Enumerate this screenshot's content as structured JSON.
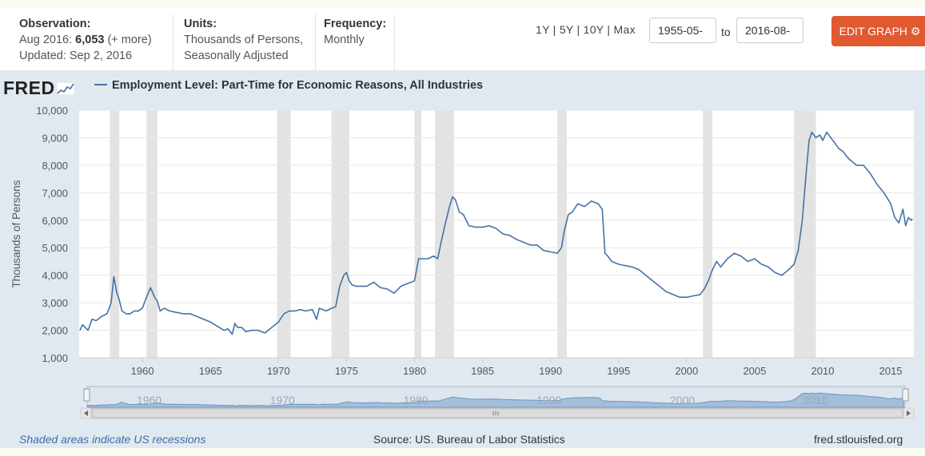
{
  "observation": {
    "header": "Observation:",
    "line1_prefix": "Aug 2016: ",
    "line1_value": "6,053",
    "line1_suffix": " (+ more)",
    "updated": "Updated: Sep 2, 2016"
  },
  "units": {
    "header": "Units:",
    "line1": "Thousands of Persons,",
    "line2": "Seasonally Adjusted"
  },
  "frequency": {
    "header": "Frequency:",
    "value": "Monthly"
  },
  "range_links": [
    "1Y",
    "5Y",
    "10Y",
    "Max"
  ],
  "date_from": "1955-05-",
  "date_to": "2016-08-",
  "to_label": "to",
  "edit_button": "EDIT GRAPH",
  "logo": "FRED",
  "footer": {
    "recession_note": "Shaded areas indicate US recessions",
    "source": "Source: US. Bureau of Labor Statistics",
    "site": "fred.stlouisfed.org"
  },
  "colors": {
    "line": "#4572a7",
    "recession": "#e3e3e3",
    "edit_button": "#e1592f",
    "panel": "#e1e9f0"
  },
  "chart_data": {
    "type": "line",
    "title": "Employment Level: Part-Time for Economic Reasons, All Industries",
    "ylabel": "Thousands of Persons",
    "xlabel": "",
    "xlim": [
      1955.35,
      2016.7
    ],
    "ylim": [
      1000,
      10000
    ],
    "yticks": [
      1000,
      2000,
      3000,
      4000,
      5000,
      6000,
      7000,
      8000,
      9000,
      10000
    ],
    "ytick_labels": [
      "1,000",
      "2,000",
      "3,000",
      "4,000",
      "5,000",
      "6,000",
      "7,000",
      "8,000",
      "9,000",
      "10,000"
    ],
    "xticks": [
      1960,
      1965,
      1970,
      1975,
      1980,
      1985,
      1990,
      1995,
      2000,
      2005,
      2010,
      2015
    ],
    "xtick_labels": [
      "1960",
      "1965",
      "1970",
      "1975",
      "1980",
      "1985",
      "1990",
      "1995",
      "2000",
      "2005",
      "2010",
      "2015"
    ],
    "navigator_labels": [
      "1960",
      "1970",
      "1980",
      "1990",
      "2000",
      "2010"
    ],
    "recessions": [
      [
        1957.6,
        1958.3
      ],
      [
        1960.3,
        1961.1
      ],
      [
        1969.9,
        1970.9
      ],
      [
        1973.9,
        1975.2
      ],
      [
        1980.0,
        1980.5
      ],
      [
        1981.5,
        1982.9
      ],
      [
        1990.5,
        1991.2
      ],
      [
        2001.2,
        2001.9
      ],
      [
        2007.9,
        2009.5
      ]
    ],
    "series": [
      {
        "name": "Employment Level: Part-Time for Economic Reasons, All Industries",
        "x": [
          1955.4,
          1955.6,
          1955.8,
          1956.0,
          1956.3,
          1956.6,
          1957.0,
          1957.4,
          1957.7,
          1957.9,
          1958.1,
          1958.3,
          1958.5,
          1958.8,
          1959.1,
          1959.4,
          1959.7,
          1960.0,
          1960.3,
          1960.6,
          1960.9,
          1961.1,
          1961.3,
          1961.6,
          1962.0,
          1962.5,
          1963.0,
          1963.5,
          1964.0,
          1964.5,
          1965.0,
          1965.5,
          1966.0,
          1966.3,
          1966.6,
          1966.8,
          1967.0,
          1967.3,
          1967.6,
          1968.0,
          1968.5,
          1969.0,
          1969.5,
          1970.0,
          1970.4,
          1970.8,
          1971.2,
          1971.6,
          1972.0,
          1972.5,
          1972.8,
          1973.0,
          1973.5,
          1973.9,
          1974.2,
          1974.5,
          1974.8,
          1975.0,
          1975.2,
          1975.4,
          1975.7,
          1976.0,
          1976.5,
          1977.0,
          1977.5,
          1978.0,
          1978.5,
          1979.0,
          1979.5,
          1980.0,
          1980.3,
          1980.6,
          1981.0,
          1981.4,
          1981.7,
          1982.0,
          1982.3,
          1982.6,
          1982.8,
          1983.0,
          1983.3,
          1983.6,
          1984.0,
          1984.5,
          1985.0,
          1985.5,
          1986.0,
          1986.5,
          1987.0,
          1987.5,
          1988.0,
          1988.5,
          1989.0,
          1989.5,
          1990.0,
          1990.5,
          1990.8,
          1991.0,
          1991.3,
          1991.6,
          1992.0,
          1992.5,
          1993.0,
          1993.5,
          1993.8,
          1994.0,
          1994.2,
          1994.5,
          1995.0,
          1995.5,
          1996.0,
          1996.5,
          1997.0,
          1997.5,
          1998.0,
          1998.5,
          1999.0,
          1999.5,
          2000.0,
          2000.5,
          2001.0,
          2001.3,
          2001.6,
          2001.9,
          2002.2,
          2002.5,
          2003.0,
          2003.5,
          2004.0,
          2004.5,
          2005.0,
          2005.5,
          2006.0,
          2006.5,
          2007.0,
          2007.5,
          2007.9,
          2008.2,
          2008.5,
          2008.8,
          2009.0,
          2009.2,
          2009.5,
          2009.8,
          2010.0,
          2010.3,
          2010.6,
          2010.9,
          2011.2,
          2011.5,
          2011.8,
          2012.0,
          2012.5,
          2013.0,
          2013.5,
          2014.0,
          2014.5,
          2015.0,
          2015.3,
          2015.6,
          2015.9,
          2016.1,
          2016.3,
          2016.5,
          2016.6
        ],
        "values": [
          2000,
          2200,
          2100,
          2000,
          2400,
          2350,
          2500,
          2600,
          3000,
          3950,
          3400,
          3100,
          2700,
          2600,
          2600,
          2700,
          2700,
          2800,
          3200,
          3550,
          3200,
          3050,
          2700,
          2800,
          2700,
          2650,
          2600,
          2600,
          2500,
          2400,
          2300,
          2150,
          2000,
          2050,
          1850,
          2250,
          2100,
          2100,
          1950,
          2000,
          2000,
          1900,
          2100,
          2300,
          2600,
          2700,
          2700,
          2750,
          2700,
          2750,
          2400,
          2800,
          2700,
          2800,
          2850,
          3600,
          4000,
          4100,
          3800,
          3650,
          3600,
          3600,
          3600,
          3750,
          3550,
          3500,
          3350,
          3600,
          3700,
          3800,
          4600,
          4600,
          4600,
          4700,
          4600,
          5300,
          5950,
          6550,
          6850,
          6750,
          6300,
          6200,
          5800,
          5750,
          5750,
          5800,
          5700,
          5500,
          5450,
          5300,
          5200,
          5100,
          5100,
          4900,
          4850,
          4800,
          5000,
          5600,
          6200,
          6300,
          6600,
          6500,
          6700,
          6600,
          6400,
          4800,
          4700,
          4500,
          4400,
          4350,
          4300,
          4200,
          4000,
          3800,
          3600,
          3400,
          3300,
          3200,
          3200,
          3250,
          3300,
          3500,
          3800,
          4200,
          4500,
          4300,
          4600,
          4800,
          4700,
          4500,
          4600,
          4400,
          4300,
          4100,
          4000,
          4200,
          4400,
          4900,
          6000,
          7800,
          8900,
          9200,
          9000,
          9100,
          8900,
          9200,
          9000,
          8800,
          8600,
          8500,
          8300,
          8200,
          8000,
          8000,
          7700,
          7300,
          7000,
          6600,
          6100,
          5900,
          6400,
          5800,
          6100,
          6000,
          6053
        ]
      }
    ]
  }
}
